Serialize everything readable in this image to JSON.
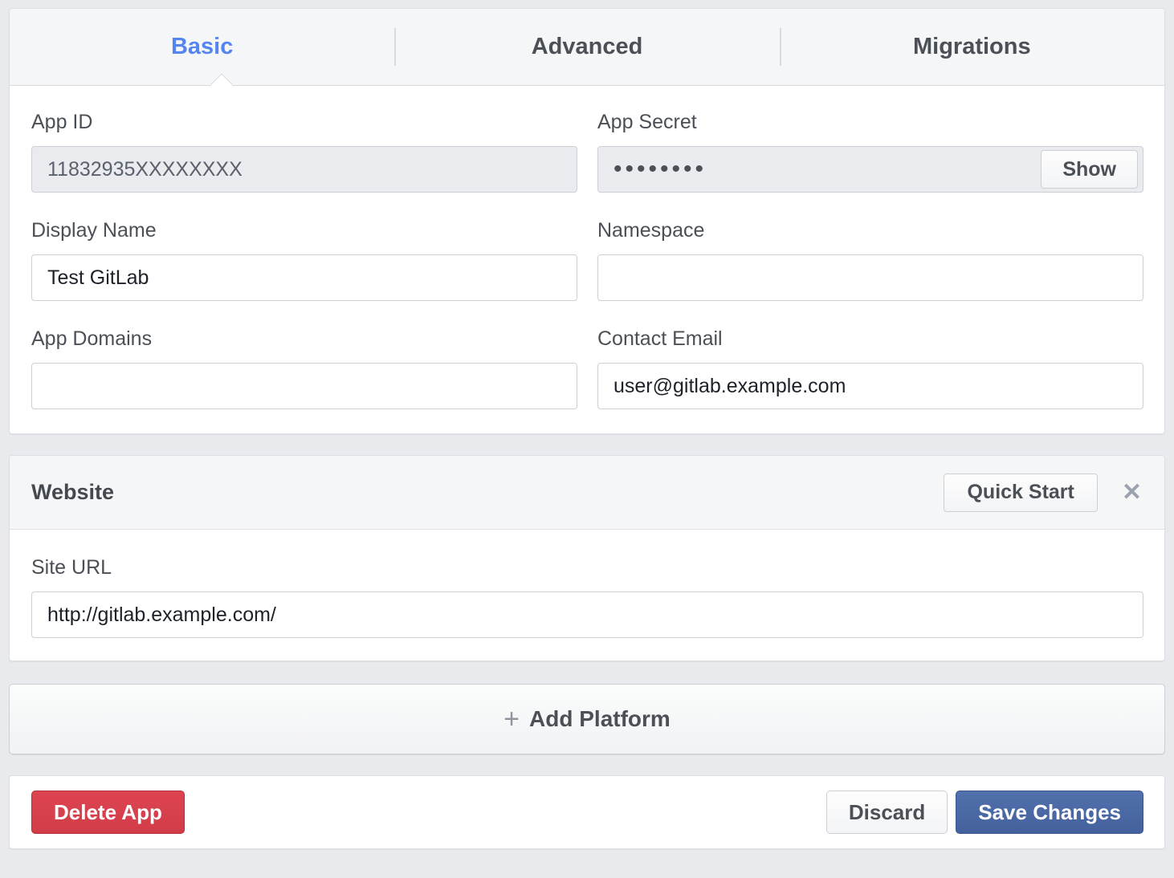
{
  "tabs": [
    {
      "label": "Basic",
      "active": true
    },
    {
      "label": "Advanced",
      "active": false
    },
    {
      "label": "Migrations",
      "active": false
    }
  ],
  "basic_form": {
    "app_id": {
      "label": "App ID",
      "value": "11832935XXXXXXXX"
    },
    "app_secret": {
      "label": "App Secret",
      "value": "••••••••",
      "show_button_label": "Show"
    },
    "display_name": {
      "label": "Display Name",
      "value": "Test GitLab"
    },
    "namespace": {
      "label": "Namespace",
      "value": ""
    },
    "app_domains": {
      "label": "App Domains",
      "value": ""
    },
    "contact_email": {
      "label": "Contact Email",
      "value": "user@gitlab.example.com"
    }
  },
  "website_section": {
    "title": "Website",
    "quick_start_label": "Quick Start",
    "close_icon": "✕",
    "site_url": {
      "label": "Site URL",
      "value": "http://gitlab.example.com/"
    }
  },
  "add_platform": {
    "plus_icon": "+",
    "label": "Add Platform"
  },
  "footer": {
    "delete_label": "Delete App",
    "discard_label": "Discard",
    "save_label": "Save Changes"
  },
  "colors": {
    "active_tab_blue": "#5585f0",
    "primary_button_blue": "#4a69a6",
    "danger_red": "#d8414e",
    "page_background": "#e9eaed",
    "panel_header_gray": "#f5f6f7"
  }
}
